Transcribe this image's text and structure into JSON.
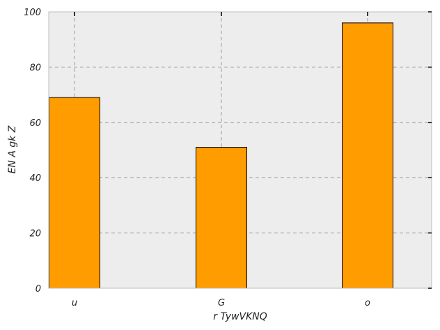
{
  "chart_data": {
    "type": "bar",
    "title": "",
    "xlabel": "r TywVKNQ",
    "ylabel": "EN A gk Z",
    "categories": [
      "u",
      "G",
      "o"
    ],
    "values": [
      69,
      51,
      96
    ],
    "ylim": [
      0,
      100
    ],
    "yticks": [
      "0",
      "20",
      "40",
      "60",
      "80",
      "100"
    ],
    "grid": true,
    "grid_style": "dashed",
    "legend": "none",
    "colors": {
      "bar_fill": "#ff9c00",
      "bar_edge": "#000000",
      "plot_background": "#ededed",
      "grid": "#b0b0b0",
      "axes_edge": "#bcbcbc"
    }
  }
}
